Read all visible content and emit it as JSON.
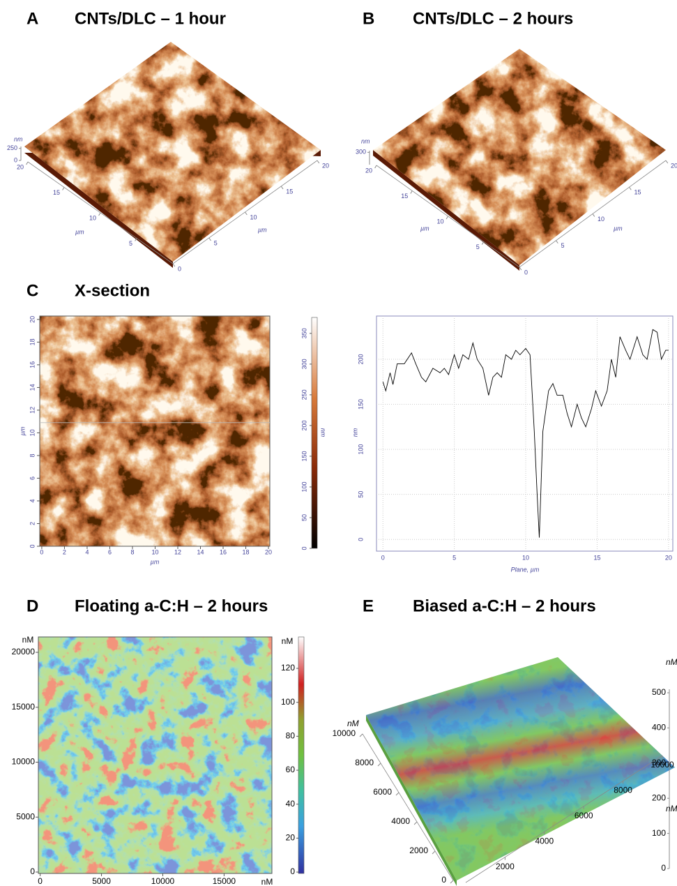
{
  "chart_data": [
    {
      "type": "surface",
      "label": "A",
      "title": "CNTs/DLC – 1 hour",
      "xlabel": "µm",
      "ylabel": "µm",
      "zlabel": "nm",
      "xlim": [
        0,
        20
      ],
      "xticks": [
        0,
        5,
        10,
        15,
        20
      ],
      "ylim": [
        0,
        20
      ],
      "yticks": [
        5,
        10,
        15,
        20
      ],
      "zlim": [
        0,
        290
      ],
      "zticks": [
        0,
        250
      ]
    },
    {
      "type": "surface",
      "label": "B",
      "title": "CNTs/DLC – 2 hours",
      "xlabel": "µm",
      "ylabel": "µm",
      "zlabel": "nm",
      "xlim": [
        0,
        20
      ],
      "xticks": [
        0,
        5,
        10,
        15,
        20
      ],
      "ylim": [
        0,
        20
      ],
      "yticks": [
        5,
        10,
        15,
        20
      ],
      "zlim": [
        0,
        340
      ],
      "zticks": [
        300
      ]
    },
    {
      "type": "heatmap",
      "label": "C",
      "title": "X-section",
      "xlabel": "µm",
      "ylabel": "µm",
      "xlim": [
        -0.18,
        20.12
      ],
      "xticks": [
        0,
        2,
        4,
        6,
        8,
        10,
        12,
        14,
        16,
        18,
        20
      ],
      "ylim": [
        0,
        20.3
      ],
      "yticks": [
        0,
        2,
        4,
        6,
        8,
        10,
        12,
        14,
        16,
        18,
        20
      ],
      "section_y": 10.9,
      "colorbar": {
        "label": "nm",
        "lim": [
          0,
          376
        ],
        "ticks": [
          0,
          50,
          100,
          150,
          200,
          250,
          300,
          350
        ]
      }
    },
    {
      "type": "line",
      "xlabel": "Plane, µm",
      "ylabel": "nm",
      "color": "#000000",
      "grid": true,
      "xlim": [
        -0.45,
        20.3
      ],
      "xticks": [
        0,
        5,
        10,
        15,
        20
      ],
      "ylim": [
        -13,
        248
      ],
      "yticks": [
        0,
        50,
        100,
        150,
        200
      ],
      "x": [
        0,
        0.2,
        0.5,
        0.7,
        1,
        1.5,
        2,
        2.3,
        2.7,
        3,
        3.5,
        4,
        4.3,
        4.6,
        5,
        5.3,
        5.6,
        6,
        6.3,
        6.6,
        7,
        7.4,
        7.7,
        8,
        8.3,
        8.6,
        9,
        9.3,
        9.6,
        10,
        10.3,
        10.6,
        10.8,
        10.95,
        11.2,
        11.6,
        11.9,
        12.2,
        12.6,
        12.9,
        13.2,
        13.6,
        13.9,
        14.2,
        14.6,
        14.9,
        15.3,
        15.7,
        16,
        16.3,
        16.6,
        17,
        17.3,
        17.8,
        18.2,
        18.5,
        18.9,
        19.2,
        19.5,
        19.8,
        20
      ],
      "values": [
        175,
        165,
        185,
        172,
        195,
        195,
        207,
        195,
        180,
        175,
        190,
        185,
        190,
        183,
        205,
        190,
        205,
        200,
        218,
        200,
        190,
        160,
        180,
        185,
        180,
        205,
        200,
        210,
        205,
        212,
        205,
        120,
        50,
        2,
        120,
        165,
        173,
        160,
        160,
        140,
        125,
        150,
        135,
        125,
        145,
        165,
        148,
        165,
        200,
        180,
        225,
        210,
        200,
        225,
        205,
        200,
        233,
        230,
        200,
        210,
        210
      ]
    },
    {
      "type": "heatmap",
      "label": "D",
      "title": "Floating a-C:H – 2 hours",
      "xlabel": "nM",
      "ylabel": "nM",
      "xlim": [
        -150,
        18900
      ],
      "xticks": [
        0,
        5000,
        10000,
        15000
      ],
      "ylim": [
        -127,
        21400
      ],
      "yticks": [
        0,
        5000,
        10000,
        15000,
        20000
      ],
      "colorbar": {
        "label": "nM",
        "lim": [
          -0.8,
          138.5
        ],
        "ticks": [
          0,
          20,
          40,
          60,
          80,
          100,
          120
        ]
      }
    },
    {
      "type": "surface",
      "label": "E",
      "title": "Biased a-C:H – 2 hours",
      "xlabel": "nM",
      "ylabel": "nM",
      "zlabel": "nM",
      "xlim": [
        0,
        10000
      ],
      "xticks": [
        2000,
        4000,
        6000,
        8000,
        10000
      ],
      "ylim": [
        0,
        10000
      ],
      "yticks": [
        0,
        2000,
        4000,
        6000,
        8000,
        10000
      ],
      "zlim": [
        0,
        510
      ],
      "zticks": [
        0,
        100,
        200,
        300,
        400,
        500
      ]
    }
  ]
}
